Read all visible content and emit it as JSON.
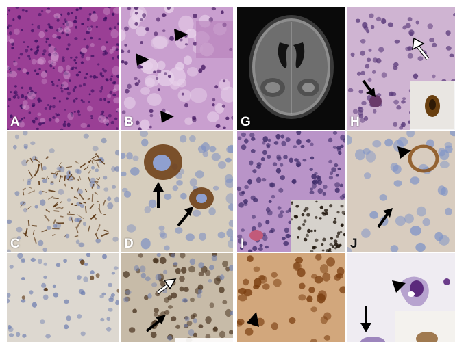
{
  "figure": {
    "panels": [
      {
        "id": "A",
        "label": "A",
        "bg": "#9a3f95"
      },
      {
        "id": "B",
        "label": "B",
        "bg": "#c99fcf"
      },
      {
        "id": "C",
        "label": "C",
        "bg": "#d9d1c4"
      },
      {
        "id": "D",
        "label": "D",
        "bg": "#d6cdbd"
      },
      {
        "id": "E",
        "label": "",
        "bg": "#ddd8d0"
      },
      {
        "id": "F",
        "label": "",
        "bg": "#c7bba8"
      },
      {
        "id": "G",
        "label": "G",
        "bg": "#0a0a0a"
      },
      {
        "id": "H",
        "label": "H",
        "bg": "#cfb4d2"
      },
      {
        "id": "I",
        "label": "I",
        "bg": "#b994c8"
      },
      {
        "id": "J",
        "label": "J",
        "bg": "#d8ccbf"
      },
      {
        "id": "K",
        "label": "",
        "bg": "#d2a77c"
      },
      {
        "id": "L",
        "label": "",
        "bg": "#efecf2"
      }
    ]
  }
}
